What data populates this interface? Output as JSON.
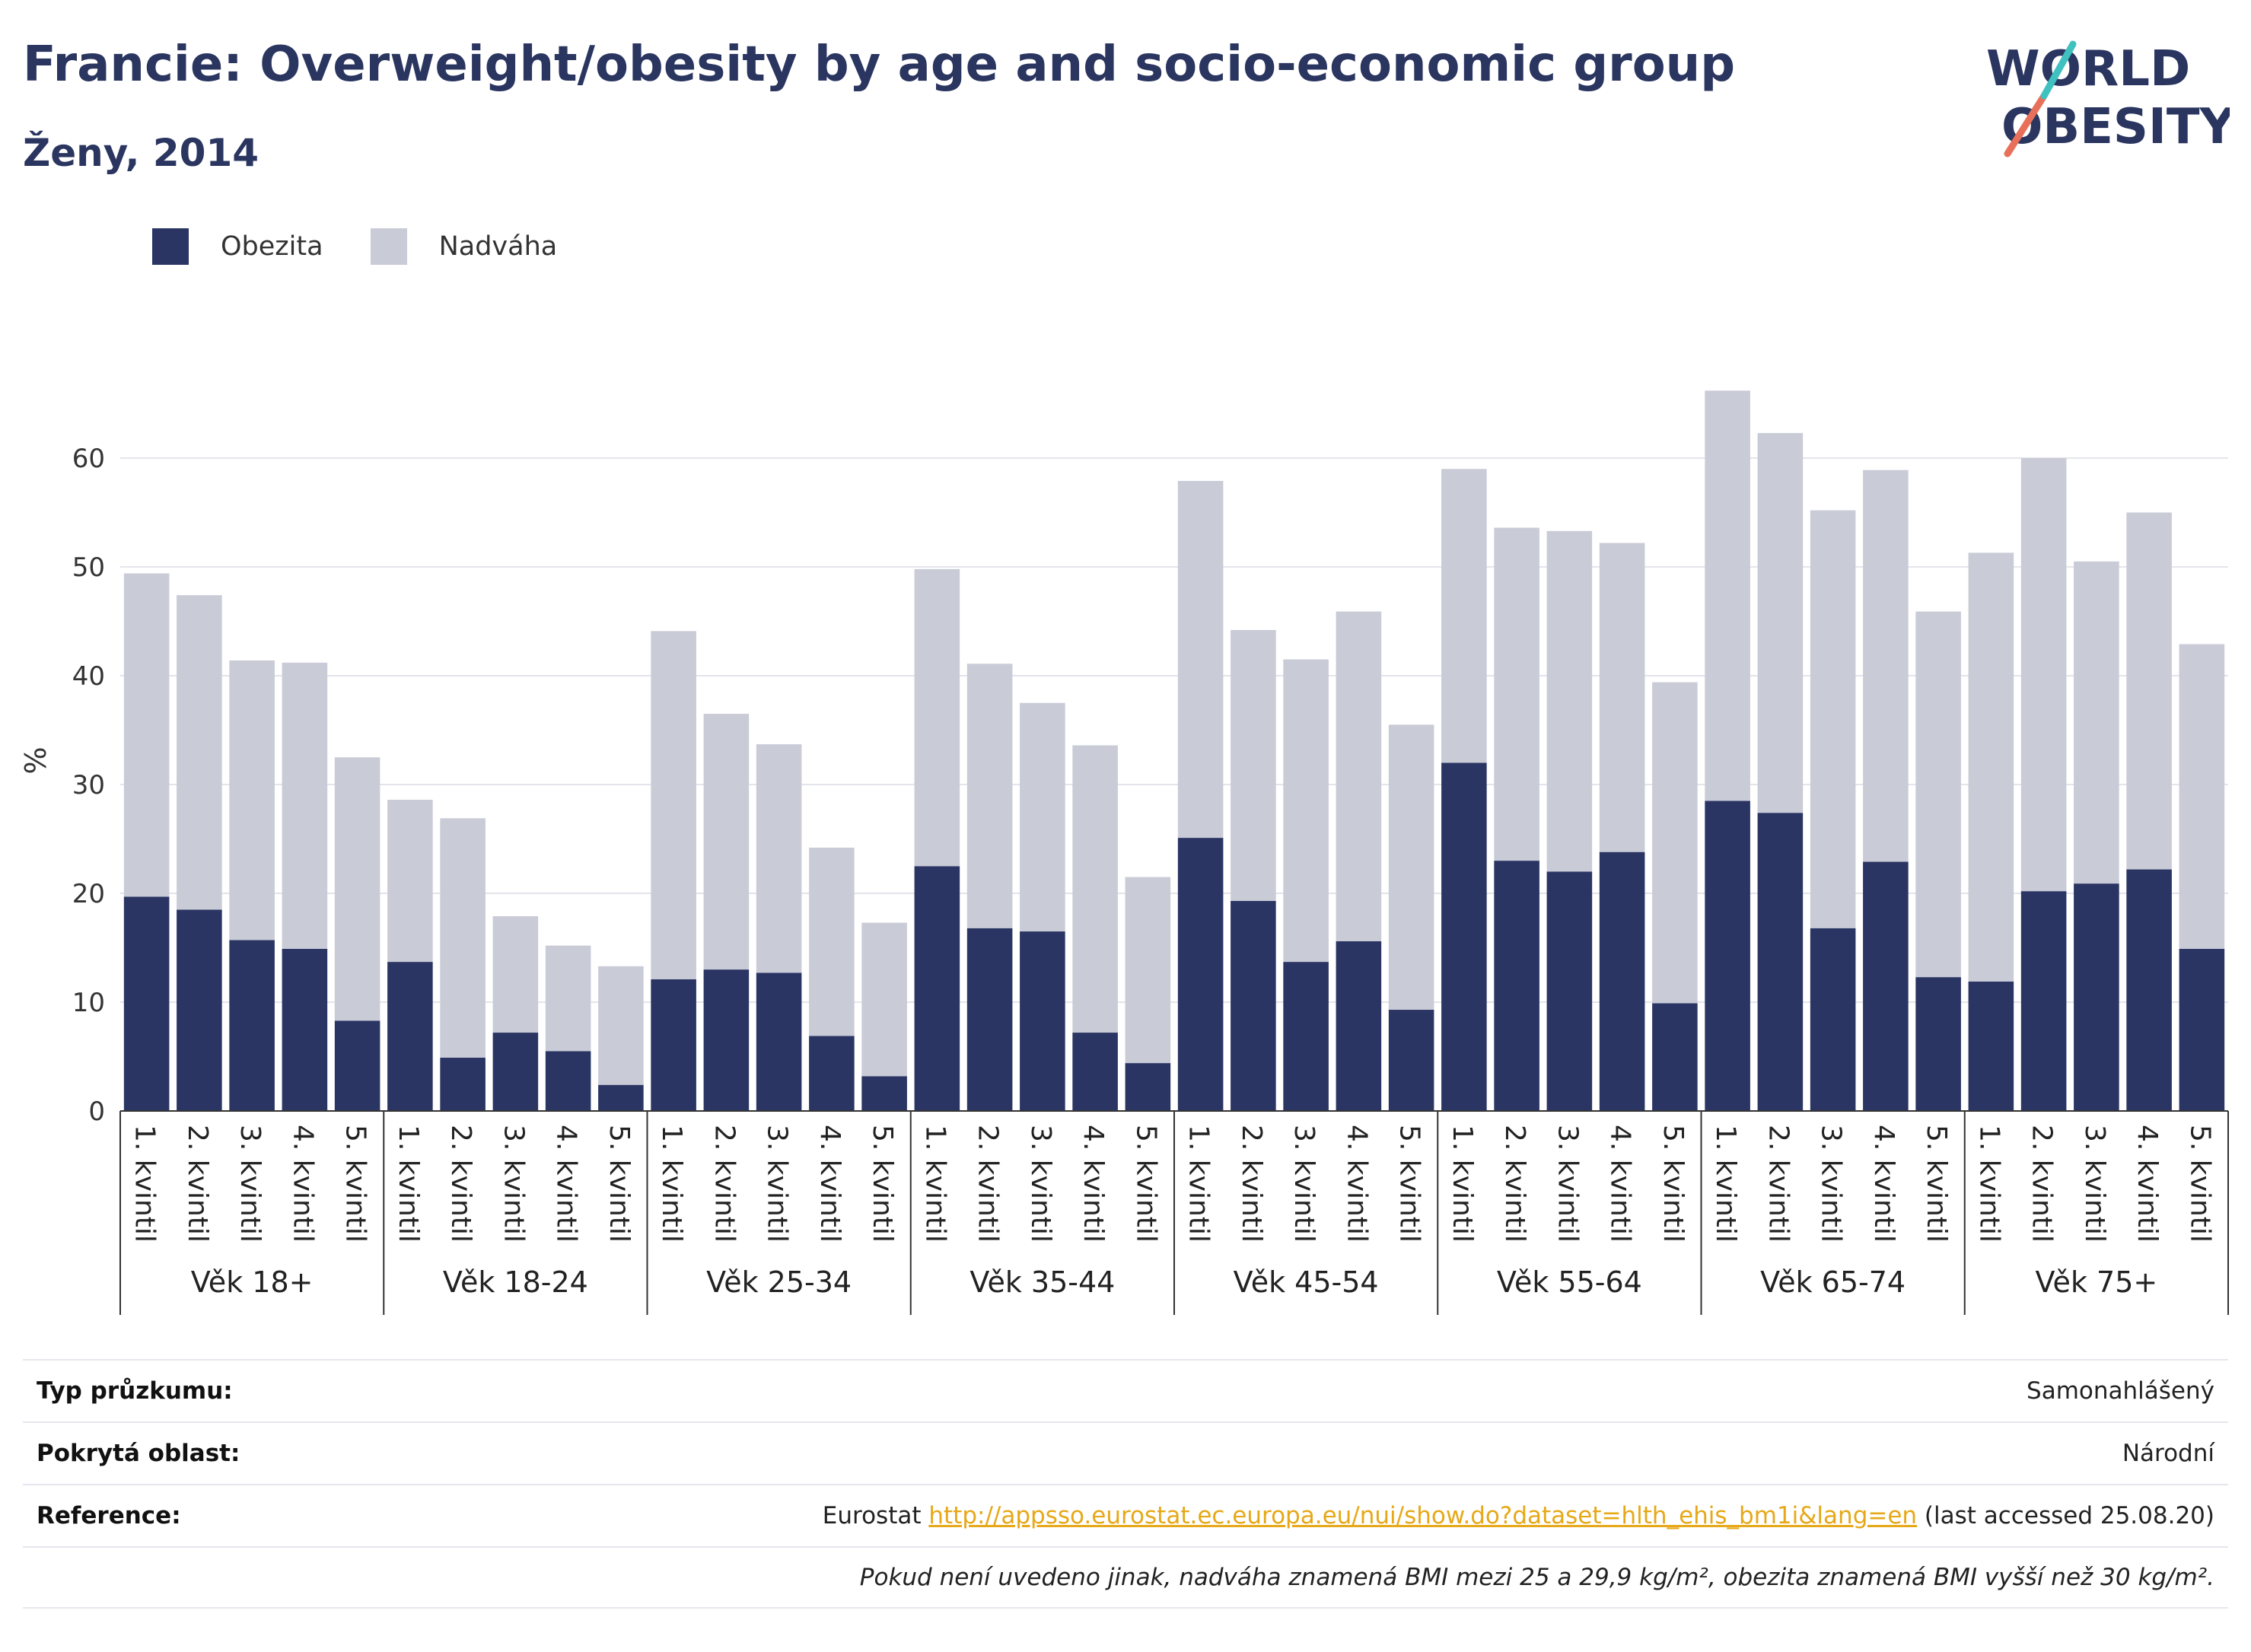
{
  "header": {
    "title": "Francie: Overweight/obesity by age and socio-economic group",
    "subtitle": "Ženy, 2014"
  },
  "logo": {
    "line1": "WORLD",
    "line2": "OBESITY"
  },
  "legend": [
    {
      "label": "Obezita",
      "color": "#2a3563"
    },
    {
      "label": "Nadváha",
      "color": "#c9cbd7"
    }
  ],
  "chart_data": {
    "type": "bar",
    "stacked": true,
    "ylabel": "%",
    "ylim": [
      0,
      70
    ],
    "yticks": [
      0,
      10,
      20,
      30,
      40,
      50,
      60
    ],
    "grid": true,
    "legend_position": "top-left",
    "groups": [
      "Věk 18+",
      "Věk 18-24",
      "Věk 25-34",
      "Věk 35-44",
      "Věk 45-54",
      "Věk 55-64",
      "Věk 65-74",
      "Věk 75+"
    ],
    "categories": [
      "1. kvintil",
      "2. kvintil",
      "3. kvintil",
      "4. kvintil",
      "5. kvintil"
    ],
    "series": [
      {
        "name": "Obezita",
        "color": "#2a3563",
        "values": [
          [
            19.7,
            18.5,
            15.7,
            14.9,
            8.3
          ],
          [
            13.7,
            4.9,
            7.2,
            5.5,
            2.4
          ],
          [
            12.1,
            13.0,
            12.7,
            6.9,
            3.2
          ],
          [
            22.5,
            16.8,
            16.5,
            7.2,
            4.4
          ],
          [
            25.1,
            19.3,
            13.7,
            15.6,
            9.3
          ],
          [
            32.0,
            23.0,
            22.0,
            23.8,
            9.9
          ],
          [
            28.5,
            27.4,
            16.8,
            22.9,
            12.3
          ],
          [
            11.9,
            20.2,
            20.9,
            22.2,
            14.9
          ]
        ]
      },
      {
        "name": "Nadváha",
        "color": "#c9cbd7",
        "values": [
          [
            29.7,
            28.9,
            25.7,
            26.3,
            24.2
          ],
          [
            14.9,
            22.0,
            10.7,
            9.7,
            10.9
          ],
          [
            32.0,
            23.5,
            21.0,
            17.3,
            14.1
          ],
          [
            27.3,
            24.3,
            21.0,
            26.4,
            17.1
          ],
          [
            32.8,
            24.9,
            27.8,
            30.3,
            26.2
          ],
          [
            27.0,
            30.6,
            31.3,
            28.4,
            29.5
          ],
          [
            37.7,
            34.9,
            38.4,
            36.0,
            33.6
          ],
          [
            39.4,
            39.8,
            29.6,
            32.8,
            28.0
          ]
        ]
      }
    ]
  },
  "info": {
    "survey_type_label": "Typ průzkumu:",
    "survey_type_value": "Samonahlášený",
    "coverage_label": "Pokrytá oblast:",
    "coverage_value": "Národní",
    "reference_label": "Reference:",
    "reference_prefix": "Eurostat",
    "reference_url": "http://appsso.eurostat.ec.europa.eu/nui/show.do?dataset=hlth_ehis_bm1i&lang=en",
    "reference_suffix": "(last accessed 25.08.20)",
    "note": "Pokud není uvedeno jinak, nadváha znamená BMI mezi 25 a 29,9 kg/m², obezita znamená BMI vyšší než 30 kg/m²."
  }
}
